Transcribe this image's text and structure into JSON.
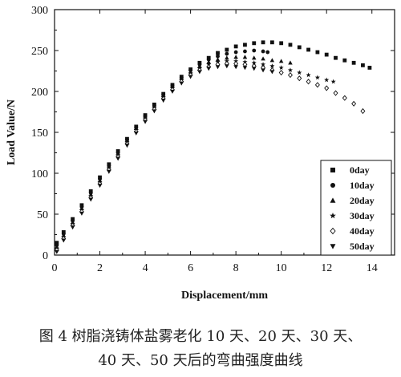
{
  "chart_data": {
    "type": "scatter",
    "title": "",
    "xlabel": "Displacement/mm",
    "ylabel": "Load Value/N",
    "xlim": [
      0,
      15
    ],
    "ylim": [
      0,
      300
    ],
    "xticks": [
      "0",
      "2",
      "4",
      "6",
      "8",
      "10",
      "12",
      "14"
    ],
    "yticks": [
      "0",
      "50",
      "100",
      "150",
      "200",
      "250",
      "300"
    ],
    "grid": false,
    "legend_position": "bottom-right",
    "series": [
      {
        "name": "0day",
        "marker": "square",
        "x": [
          0.1,
          0.4,
          0.8,
          1.2,
          1.6,
          2.0,
          2.4,
          2.8,
          3.2,
          3.6,
          4.0,
          4.4,
          4.8,
          5.2,
          5.6,
          6.0,
          6.4,
          6.8,
          7.2,
          7.6,
          8.0,
          8.4,
          8.8,
          9.2,
          9.6,
          10.0,
          10.4,
          10.8,
          11.2,
          11.6,
          12.0,
          12.4,
          12.8,
          13.2,
          13.6,
          13.9
        ],
        "y": [
          15,
          28,
          44,
          61,
          78,
          95,
          111,
          127,
          142,
          157,
          171,
          184,
          197,
          208,
          218,
          227,
          235,
          241,
          247,
          251,
          255,
          257,
          259,
          260,
          260,
          259,
          257,
          254,
          251,
          248,
          245,
          241,
          238,
          235,
          232,
          229
        ]
      },
      {
        "name": "10day",
        "marker": "circle",
        "x": [
          0.1,
          0.4,
          0.8,
          1.2,
          1.6,
          2.0,
          2.4,
          2.8,
          3.2,
          3.6,
          4.0,
          4.4,
          4.8,
          5.2,
          5.6,
          6.0,
          6.4,
          6.8,
          7.2,
          7.6,
          8.0,
          8.4,
          8.8,
          9.2,
          9.4
        ],
        "y": [
          12,
          26,
          42,
          59,
          76,
          93,
          109,
          125,
          141,
          156,
          170,
          183,
          196,
          207,
          217,
          226,
          233,
          239,
          243,
          246,
          248,
          249,
          250,
          249,
          248
        ]
      },
      {
        "name": "20day",
        "marker": "triangle-up",
        "x": [
          0.1,
          0.4,
          0.8,
          1.2,
          1.6,
          2.0,
          2.4,
          2.8,
          3.2,
          3.6,
          4.0,
          4.4,
          4.8,
          5.2,
          5.6,
          6.0,
          6.4,
          6.8,
          7.2,
          7.6,
          8.0,
          8.4,
          8.8,
          9.2,
          9.6,
          10.0,
          10.4
        ],
        "y": [
          10,
          24,
          40,
          57,
          74,
          91,
          108,
          124,
          140,
          155,
          169,
          182,
          195,
          206,
          216,
          224,
          231,
          236,
          239,
          241,
          242,
          242,
          241,
          240,
          238,
          237,
          235
        ]
      },
      {
        "name": "30day",
        "marker": "star",
        "x": [
          0.1,
          0.4,
          0.8,
          1.2,
          1.6,
          2.0,
          2.4,
          2.8,
          3.2,
          3.6,
          4.0,
          4.4,
          4.8,
          5.2,
          5.6,
          6.0,
          6.4,
          6.8,
          7.2,
          7.6,
          8.0,
          8.4,
          8.8,
          9.2,
          9.6,
          10.0,
          10.4,
          10.8,
          11.2,
          11.6,
          12.0,
          12.3
        ],
        "y": [
          8,
          22,
          38,
          55,
          72,
          89,
          106,
          122,
          138,
          153,
          167,
          180,
          193,
          204,
          214,
          222,
          228,
          233,
          236,
          237,
          237,
          236,
          235,
          233,
          231,
          229,
          226,
          223,
          220,
          217,
          214,
          212
        ]
      },
      {
        "name": "40day",
        "marker": "diamond",
        "x": [
          0.1,
          0.4,
          0.8,
          1.2,
          1.6,
          2.0,
          2.4,
          2.8,
          3.2,
          3.6,
          4.0,
          4.4,
          4.8,
          5.2,
          5.6,
          6.0,
          6.4,
          6.8,
          7.2,
          7.6,
          8.0,
          8.4,
          8.8,
          9.2,
          9.6,
          10.0,
          10.4,
          10.8,
          11.2,
          11.6,
          12.0,
          12.4,
          12.8,
          13.2,
          13.6
        ],
        "y": [
          6,
          20,
          36,
          53,
          70,
          87,
          104,
          120,
          136,
          151,
          165,
          178,
          191,
          202,
          212,
          220,
          226,
          230,
          233,
          234,
          234,
          233,
          231,
          229,
          226,
          223,
          220,
          216,
          212,
          208,
          204,
          198,
          192,
          185,
          176
        ]
      },
      {
        "name": "50day",
        "marker": "triangle-down",
        "x": [
          0.1,
          0.4,
          0.8,
          1.2,
          1.6,
          2.0,
          2.4,
          2.8,
          3.2,
          3.6,
          4.0,
          4.4,
          4.8,
          5.2,
          5.6,
          6.0,
          6.4,
          6.8,
          7.2,
          7.6,
          8.0,
          8.4,
          8.8,
          9.2,
          9.6
        ],
        "y": [
          4,
          18,
          34,
          51,
          68,
          85,
          102,
          118,
          134,
          149,
          163,
          176,
          189,
          200,
          210,
          218,
          224,
          228,
          230,
          231,
          230,
          229,
          228,
          226,
          224
        ]
      }
    ]
  },
  "caption": {
    "line1": "图 4   树脂浇铸体盐雾老化 10 天、20 天、30 天、",
    "line2": "40 天、50 天后的弯曲强度曲线"
  }
}
